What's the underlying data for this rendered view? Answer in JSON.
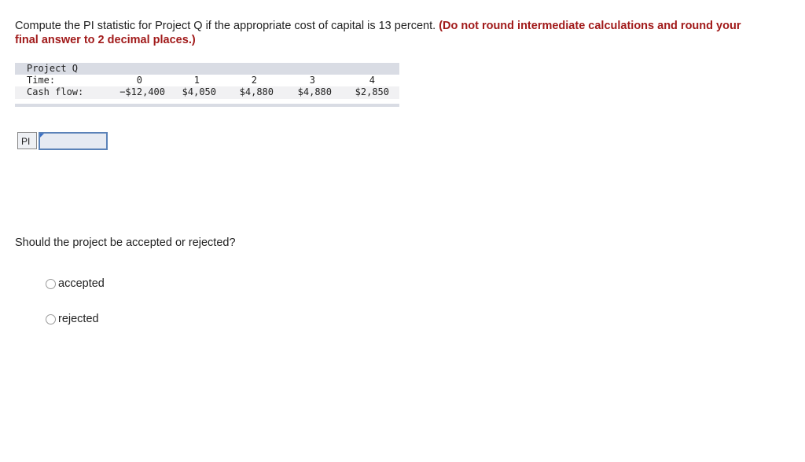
{
  "question": {
    "text": "Compute the PI statistic for Project Q if the appropriate cost of capital is 13 percent.",
    "emphasis": "(Do not round intermediate calculations and round your final answer to 2 decimal places.)"
  },
  "table": {
    "title": "Project Q",
    "time_label": "Time:",
    "cash_label": "Cash flow:",
    "times": [
      "0",
      "1",
      "2",
      "3",
      "4"
    ],
    "cash_flows": [
      "−$12,400",
      "$4,050",
      "$4,880",
      "$4,880",
      "$2,850"
    ]
  },
  "answer": {
    "label": "PI",
    "value": ""
  },
  "decision": {
    "question": "Should the project be accepted or rejected?",
    "options": [
      "accepted",
      "rejected"
    ]
  },
  "colors": {
    "emphasis": "#a11a1a",
    "table_header": "#d9dce4",
    "input_border": "#5b82b8"
  }
}
